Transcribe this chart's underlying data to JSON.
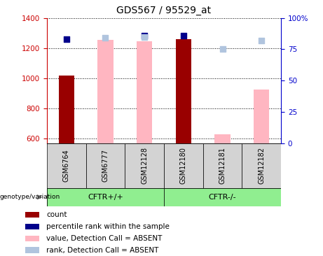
{
  "title": "GDS567 / 95529_at",
  "samples": [
    "GSM6764",
    "GSM6777",
    "GSM12128",
    "GSM12180",
    "GSM12181",
    "GSM12182"
  ],
  "ylim_left": [
    570,
    1400
  ],
  "ylim_right": [
    0,
    100
  ],
  "yticks_left": [
    600,
    800,
    1000,
    1200,
    1400
  ],
  "yticks_right": [
    0,
    25,
    50,
    75,
    100
  ],
  "ytick_labels_right": [
    "0",
    "25",
    "50",
    "75",
    "100%"
  ],
  "count_values": [
    1020,
    null,
    1245,
    1260,
    null,
    null
  ],
  "count_color": "#990000",
  "absent_value_values": [
    null,
    1253,
    1247,
    null,
    628,
    928
  ],
  "absent_value_color": "#FFB6C1",
  "rank_values": [
    83,
    null,
    86,
    86,
    null,
    null
  ],
  "rank_color": "#00008B",
  "absent_rank_values": [
    null,
    84,
    85,
    null,
    75,
    82
  ],
  "absent_rank_color": "#B0C4DE",
  "bar_width": 0.4,
  "rank_marker_size": 40,
  "legend_items": [
    {
      "label": "count",
      "color": "#990000"
    },
    {
      "label": "percentile rank within the sample",
      "color": "#00008B"
    },
    {
      "label": "value, Detection Call = ABSENT",
      "color": "#FFB6C1"
    },
    {
      "label": "rank, Detection Call = ABSENT",
      "color": "#B0C4DE"
    }
  ],
  "left_axis_color": "#CC0000",
  "right_axis_color": "#0000CC",
  "cftr_pos_color": "#90EE90",
  "cftr_neg_color": "#90EE90",
  "sample_box_color": "#D3D3D3"
}
